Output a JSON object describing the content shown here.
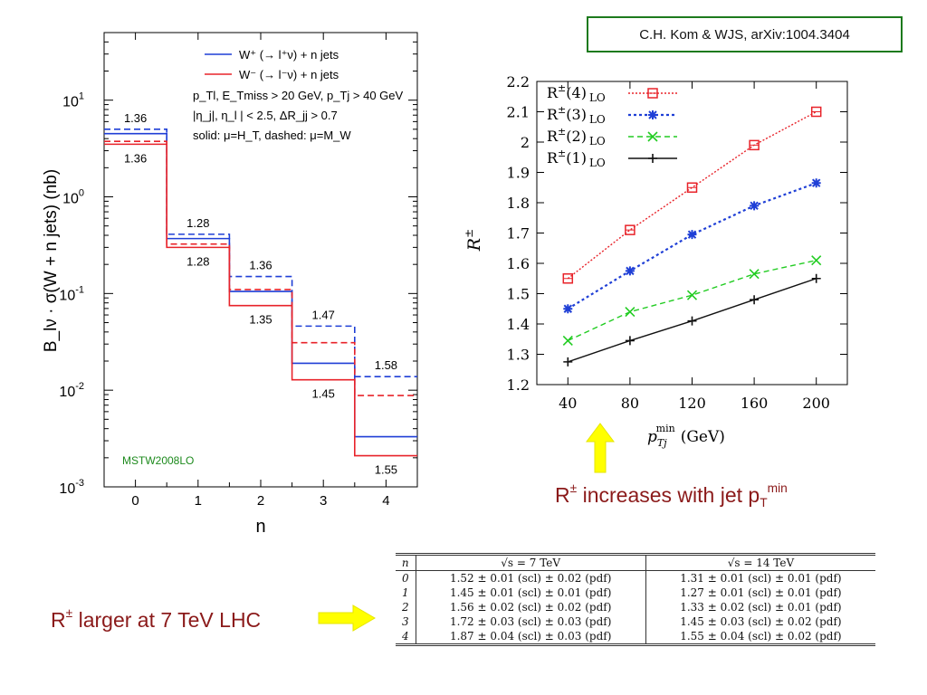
{
  "citation": "C.H. Kom & WJS, arXiv:1004.3404",
  "notes": {
    "increase": {
      "main": "R",
      "sup": "±",
      "text": " increases with jet p",
      "sub": "T",
      "sup2": "min"
    },
    "larger": {
      "main": "R",
      "sup": "±",
      "text": " larger at 7 TeV LHC"
    }
  },
  "colors": {
    "arrow": "#ffff00",
    "note": "#8b1a1a",
    "citation_border": "#1d7a1d"
  },
  "chart_data": [
    {
      "type": "line",
      "subtype": "step histogram",
      "scale": "log",
      "x": [
        0,
        1,
        2,
        3,
        4
      ],
      "xlabel": "n",
      "ylabel": "B_lν · σ(W + n jets)   (nb)",
      "ylim": [
        0.001,
        50
      ],
      "y_ticks": [
        {
          "value": 10,
          "label": "10",
          "exp": "1"
        },
        {
          "value": 1,
          "label": "10",
          "exp": "0"
        },
        {
          "value": 0.1,
          "label": "10",
          "exp": "-1"
        },
        {
          "value": 0.01,
          "label": "10",
          "exp": "-2"
        },
        {
          "value": 0.001,
          "label": "10",
          "exp": "-3"
        }
      ],
      "legend": {
        "placement": "top-right",
        "entries": [
          {
            "label": "W⁺ (→ l⁺ν) + n jets",
            "color": "#1f3fd6"
          },
          {
            "label": "W⁻ (→ l⁻ν) + n jets",
            "color": "#e8232a"
          }
        ],
        "notes": [
          "p_Tl, E_Tmiss > 20 GeV, p_Tj > 40 GeV",
          "|η_j|, η_l | < 2.5,   ΔR_jj > 0.7",
          "solid: μ=H_T, dashed: μ=M_W"
        ]
      },
      "series": [
        {
          "name": "W⁺ (→ l⁺ν) + n jets",
          "style": "solid",
          "color": "#1f3fd6",
          "values": [
            4.5,
            0.37,
            0.105,
            0.019,
            0.0033
          ]
        },
        {
          "name": "W⁺ (→ l⁺ν) + n jets",
          "style": "dashed",
          "color": "#1f3fd6",
          "values": [
            5.0,
            0.41,
            0.15,
            0.046,
            0.0138
          ]
        },
        {
          "name": "W⁻ (→ l⁻ν) + n jets",
          "style": "solid",
          "color": "#e8232a",
          "values": [
            3.5,
            0.3,
            0.075,
            0.0128,
            0.0021
          ]
        },
        {
          "name": "W⁻ (→ l⁻ν) + n jets",
          "style": "dashed",
          "color": "#e8232a",
          "values": [
            3.75,
            0.325,
            0.11,
            0.031,
            0.0088
          ]
        }
      ],
      "annotations": {
        "above": [
          "1.36",
          "1.28",
          "1.36",
          "1.47",
          "1.58"
        ],
        "below": [
          "1.36",
          "1.28",
          "1.35",
          "1.45",
          "1.55"
        ]
      },
      "footer_label": "MSTW2008LO"
    },
    {
      "type": "line",
      "x": [
        40,
        80,
        120,
        160,
        200
      ],
      "xlabel": "p_Tj^min (GeV)",
      "ylabel": "R±",
      "xlim": [
        20,
        220
      ],
      "ylim": [
        1.2,
        2.2
      ],
      "x_ticks": [
        "40",
        "80",
        "120",
        "160",
        "200"
      ],
      "y_ticks": [
        "1.2",
        "1.3",
        "1.4",
        "1.5",
        "1.6",
        "1.7",
        "1.8",
        "1.9",
        "2",
        "2.1",
        "2.2"
      ],
      "legend_placement": "top-left",
      "series": [
        {
          "name": "R±(4) LO",
          "label_main": "R",
          "label_sup": "±",
          "label_arg": "(4)",
          "label_sub": "LO",
          "color": "#e8232a",
          "marker": "square",
          "values": [
            1.55,
            1.71,
            1.85,
            1.99,
            2.1
          ]
        },
        {
          "name": "R±(3) LO",
          "label_main": "R",
          "label_sup": "±",
          "label_arg": "(3)",
          "label_sub": "LO",
          "color": "#1f3fd6",
          "marker": "star",
          "values": [
            1.45,
            1.575,
            1.695,
            1.79,
            1.865
          ]
        },
        {
          "name": "R±(2) LO",
          "label_main": "R",
          "label_sup": "±",
          "label_arg": "(2)",
          "label_sub": "LO",
          "color": "#22cc22",
          "marker": "x",
          "values": [
            1.345,
            1.44,
            1.495,
            1.565,
            1.61
          ]
        },
        {
          "name": "R±(1) LO",
          "label_main": "R",
          "label_sup": "±",
          "label_arg": "(1)",
          "label_sub": "LO",
          "color": "#111111",
          "marker": "plus",
          "values": [
            1.275,
            1.345,
            1.41,
            1.48,
            1.55
          ]
        }
      ]
    },
    {
      "type": "table",
      "headers": [
        "n",
        "√s = 7 TeV",
        "√s = 14 TeV"
      ],
      "rows": [
        [
          "0",
          "1.52 ± 0.01 (scl) ± 0.02 (pdf)",
          "1.31 ± 0.01 (scl) ± 0.01 (pdf)"
        ],
        [
          "1",
          "1.45 ± 0.01 (scl) ± 0.01 (pdf)",
          "1.27 ± 0.01 (scl) ± 0.01 (pdf)"
        ],
        [
          "2",
          "1.56 ± 0.02 (scl) ± 0.02 (pdf)",
          "1.33 ± 0.02 (scl) ± 0.01 (pdf)"
        ],
        [
          "3",
          "1.72 ± 0.03 (scl) ± 0.03 (pdf)",
          "1.45 ± 0.03 (scl) ± 0.02 (pdf)"
        ],
        [
          "4",
          "1.87 ± 0.04 (scl) ± 0.03 (pdf)",
          "1.55 ± 0.04 (scl) ± 0.02 (pdf)"
        ]
      ]
    }
  ]
}
